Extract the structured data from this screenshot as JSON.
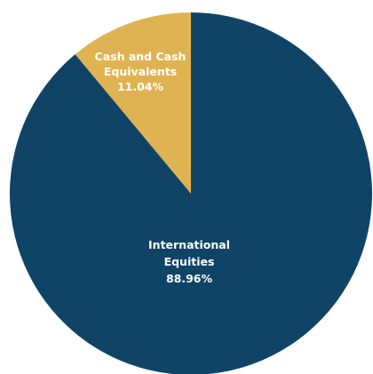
{
  "chart_data": {
    "type": "pie",
    "title": "",
    "slices": [
      {
        "name": "Cash and Cash Equivalents",
        "label_lines": [
          "Cash and Cash",
          "Equivalents"
        ],
        "value": 11.04,
        "value_label": "11.04%",
        "color": "#dfb351"
      },
      {
        "name": "International Equities",
        "label_lines": [
          "International",
          "Equities"
        ],
        "value": 88.96,
        "value_label": "88.96%",
        "color": "#104467"
      }
    ],
    "start_angle_deg": 0,
    "direction": "counterclockwise",
    "legend": "none"
  }
}
